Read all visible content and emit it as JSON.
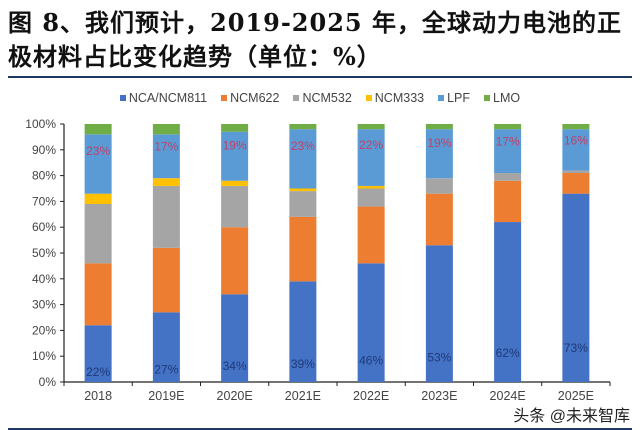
{
  "title": "图 8、我们预计，2019-2025 年，全球动力电池的正极材料占比变化趋势（单位：%）",
  "watermark": "头条 @未来智库",
  "chart_data": {
    "type": "bar",
    "stacked": true,
    "percent": true,
    "title": "图 8、我们预计，2019-2025 年，全球动力电池的正极材料占比变化趋势（单位：%）",
    "categories": [
      "2018",
      "2019E",
      "2020E",
      "2021E",
      "2022E",
      "2023E",
      "2024E",
      "2025E"
    ],
    "ylim": [
      0,
      100
    ],
    "yticks": [
      "0%",
      "10%",
      "20%",
      "30%",
      "40%",
      "50%",
      "60%",
      "70%",
      "80%",
      "90%",
      "100%"
    ],
    "legend_position": "top",
    "grid": false,
    "series": [
      {
        "name": "NCA/NCM811",
        "color": "#4472c4",
        "values": [
          22,
          27,
          34,
          39,
          46,
          53,
          62,
          73
        ],
        "labels_shown": true,
        "label_color": "#1f3a7a"
      },
      {
        "name": "NCM622",
        "color": "#ed7d31",
        "values": [
          24,
          25,
          26,
          25,
          22,
          20,
          16,
          8
        ],
        "labels_shown": false
      },
      {
        "name": "NCM532",
        "color": "#a5a5a5",
        "values": [
          23,
          24,
          16,
          10,
          7,
          6,
          3,
          1
        ],
        "labels_shown": false
      },
      {
        "name": "NCM333",
        "color": "#ffc000",
        "values": [
          4,
          3,
          2,
          1,
          1,
          0,
          0,
          0
        ],
        "labels_shown": false
      },
      {
        "name": "LPF",
        "color": "#5b9bd5",
        "values": [
          23,
          17,
          19,
          23,
          22,
          19,
          17,
          16
        ],
        "labels_shown": true,
        "label_color": "#c0406a"
      },
      {
        "name": "LMO",
        "color": "#70ad47",
        "values": [
          4,
          4,
          3,
          2,
          2,
          2,
          2,
          2
        ],
        "labels_shown": false
      }
    ]
  }
}
